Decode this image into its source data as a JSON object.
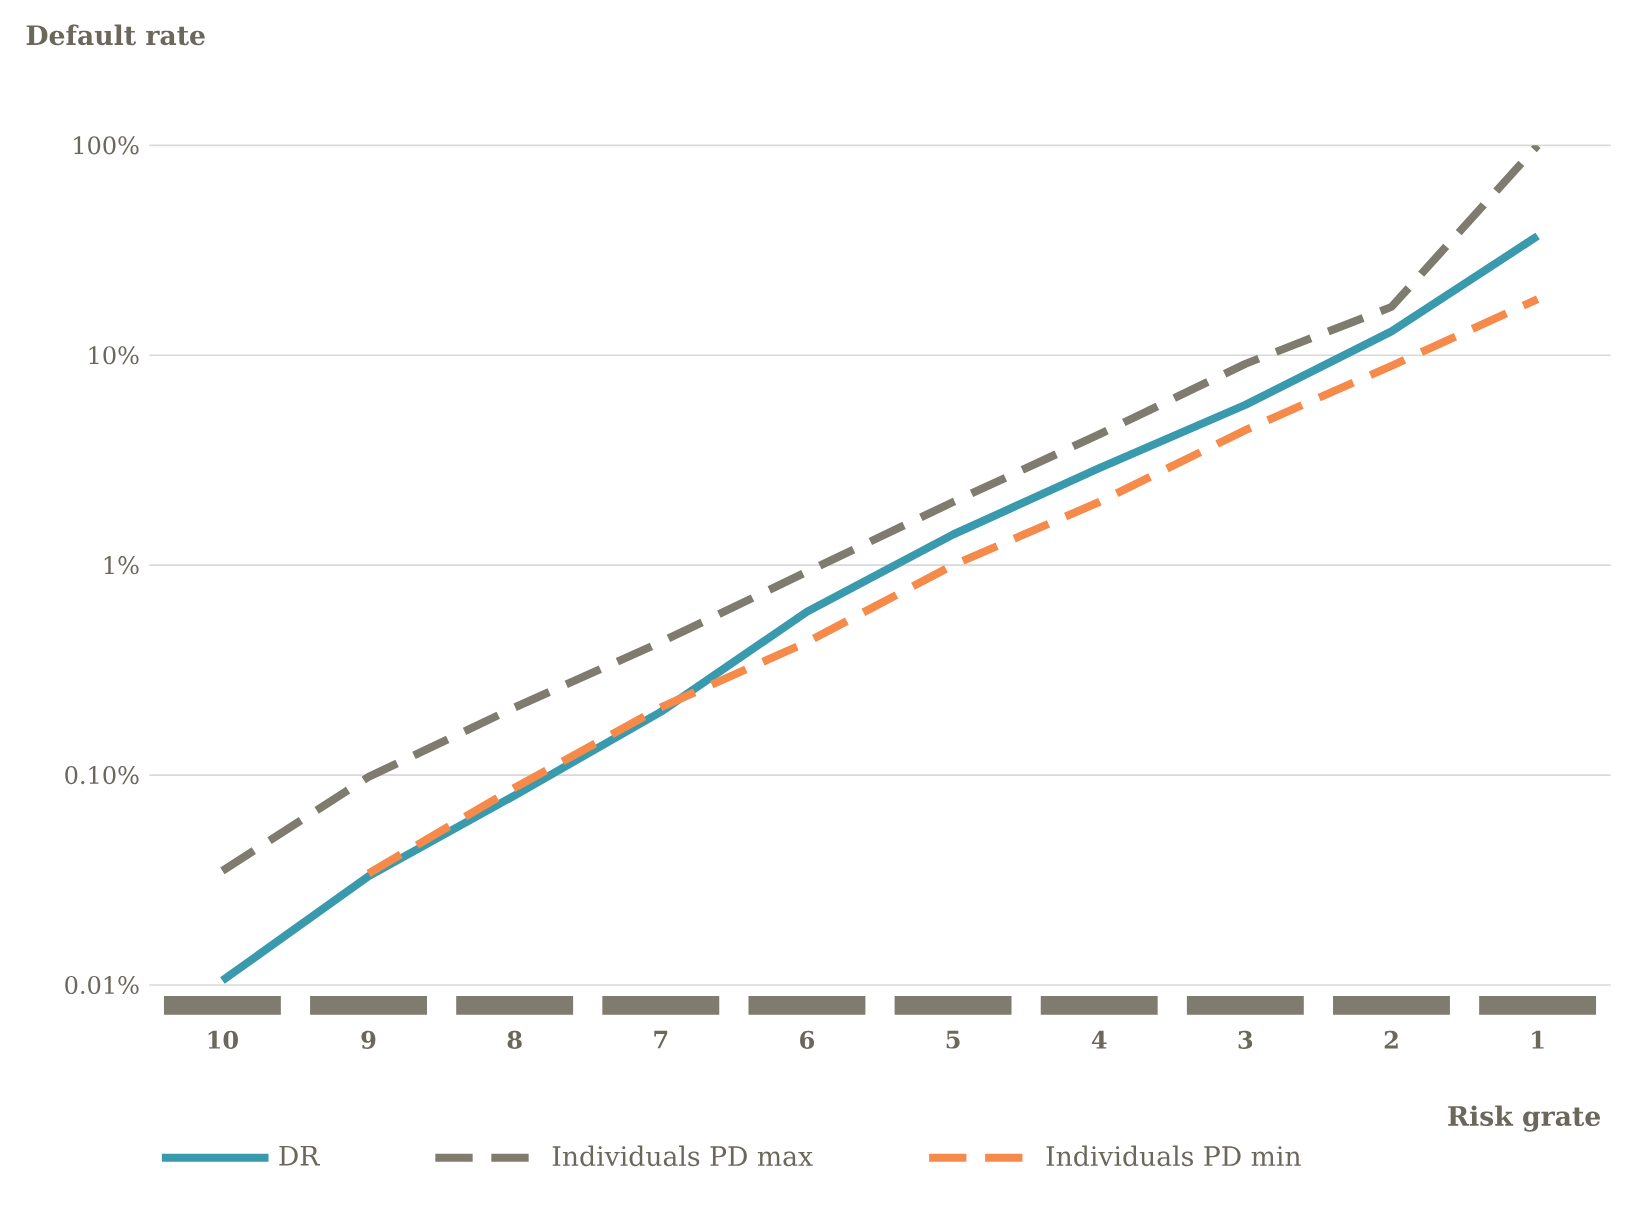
{
  "chart_data": {
    "type": "line",
    "ylabel": "Default rate",
    "xlabel": "Risk grate",
    "categories": [
      "10",
      "9",
      "8",
      "7",
      "6",
      "5",
      "4",
      "3",
      "2",
      "1"
    ],
    "series": [
      {
        "name": "DR",
        "color": "#3a9aad",
        "line_style": "solid",
        "values": [
          0.0105,
          0.033,
          0.08,
          0.2,
          0.6,
          1.4,
          2.9,
          5.8,
          13,
          37
        ]
      },
      {
        "name": "Individuals PD max",
        "color": "#7f7b6e",
        "line_style": "dashed",
        "values": [
          0.035,
          0.098,
          0.21,
          0.43,
          0.93,
          2.0,
          4.2,
          9.1,
          17,
          100
        ]
      },
      {
        "name": "Individuals PD min",
        "color": "#f58a4b",
        "line_style": "dashed",
        "values": [
          null,
          0.034,
          0.087,
          0.21,
          0.43,
          1.0,
          2.0,
          4.4,
          8.9,
          18.5
        ]
      }
    ],
    "log": "y",
    "ylim": [
      0.008,
      100
    ],
    "yticks": [
      {
        "value": 0.01,
        "label": "0.01%"
      },
      {
        "value": 0.1,
        "label": "0.10%"
      },
      {
        "value": 1,
        "label": "1%"
      },
      {
        "value": 10,
        "label": "10%"
      },
      {
        "value": 100,
        "label": "100%"
      }
    ],
    "grid": "y",
    "legend": "bottom"
  }
}
